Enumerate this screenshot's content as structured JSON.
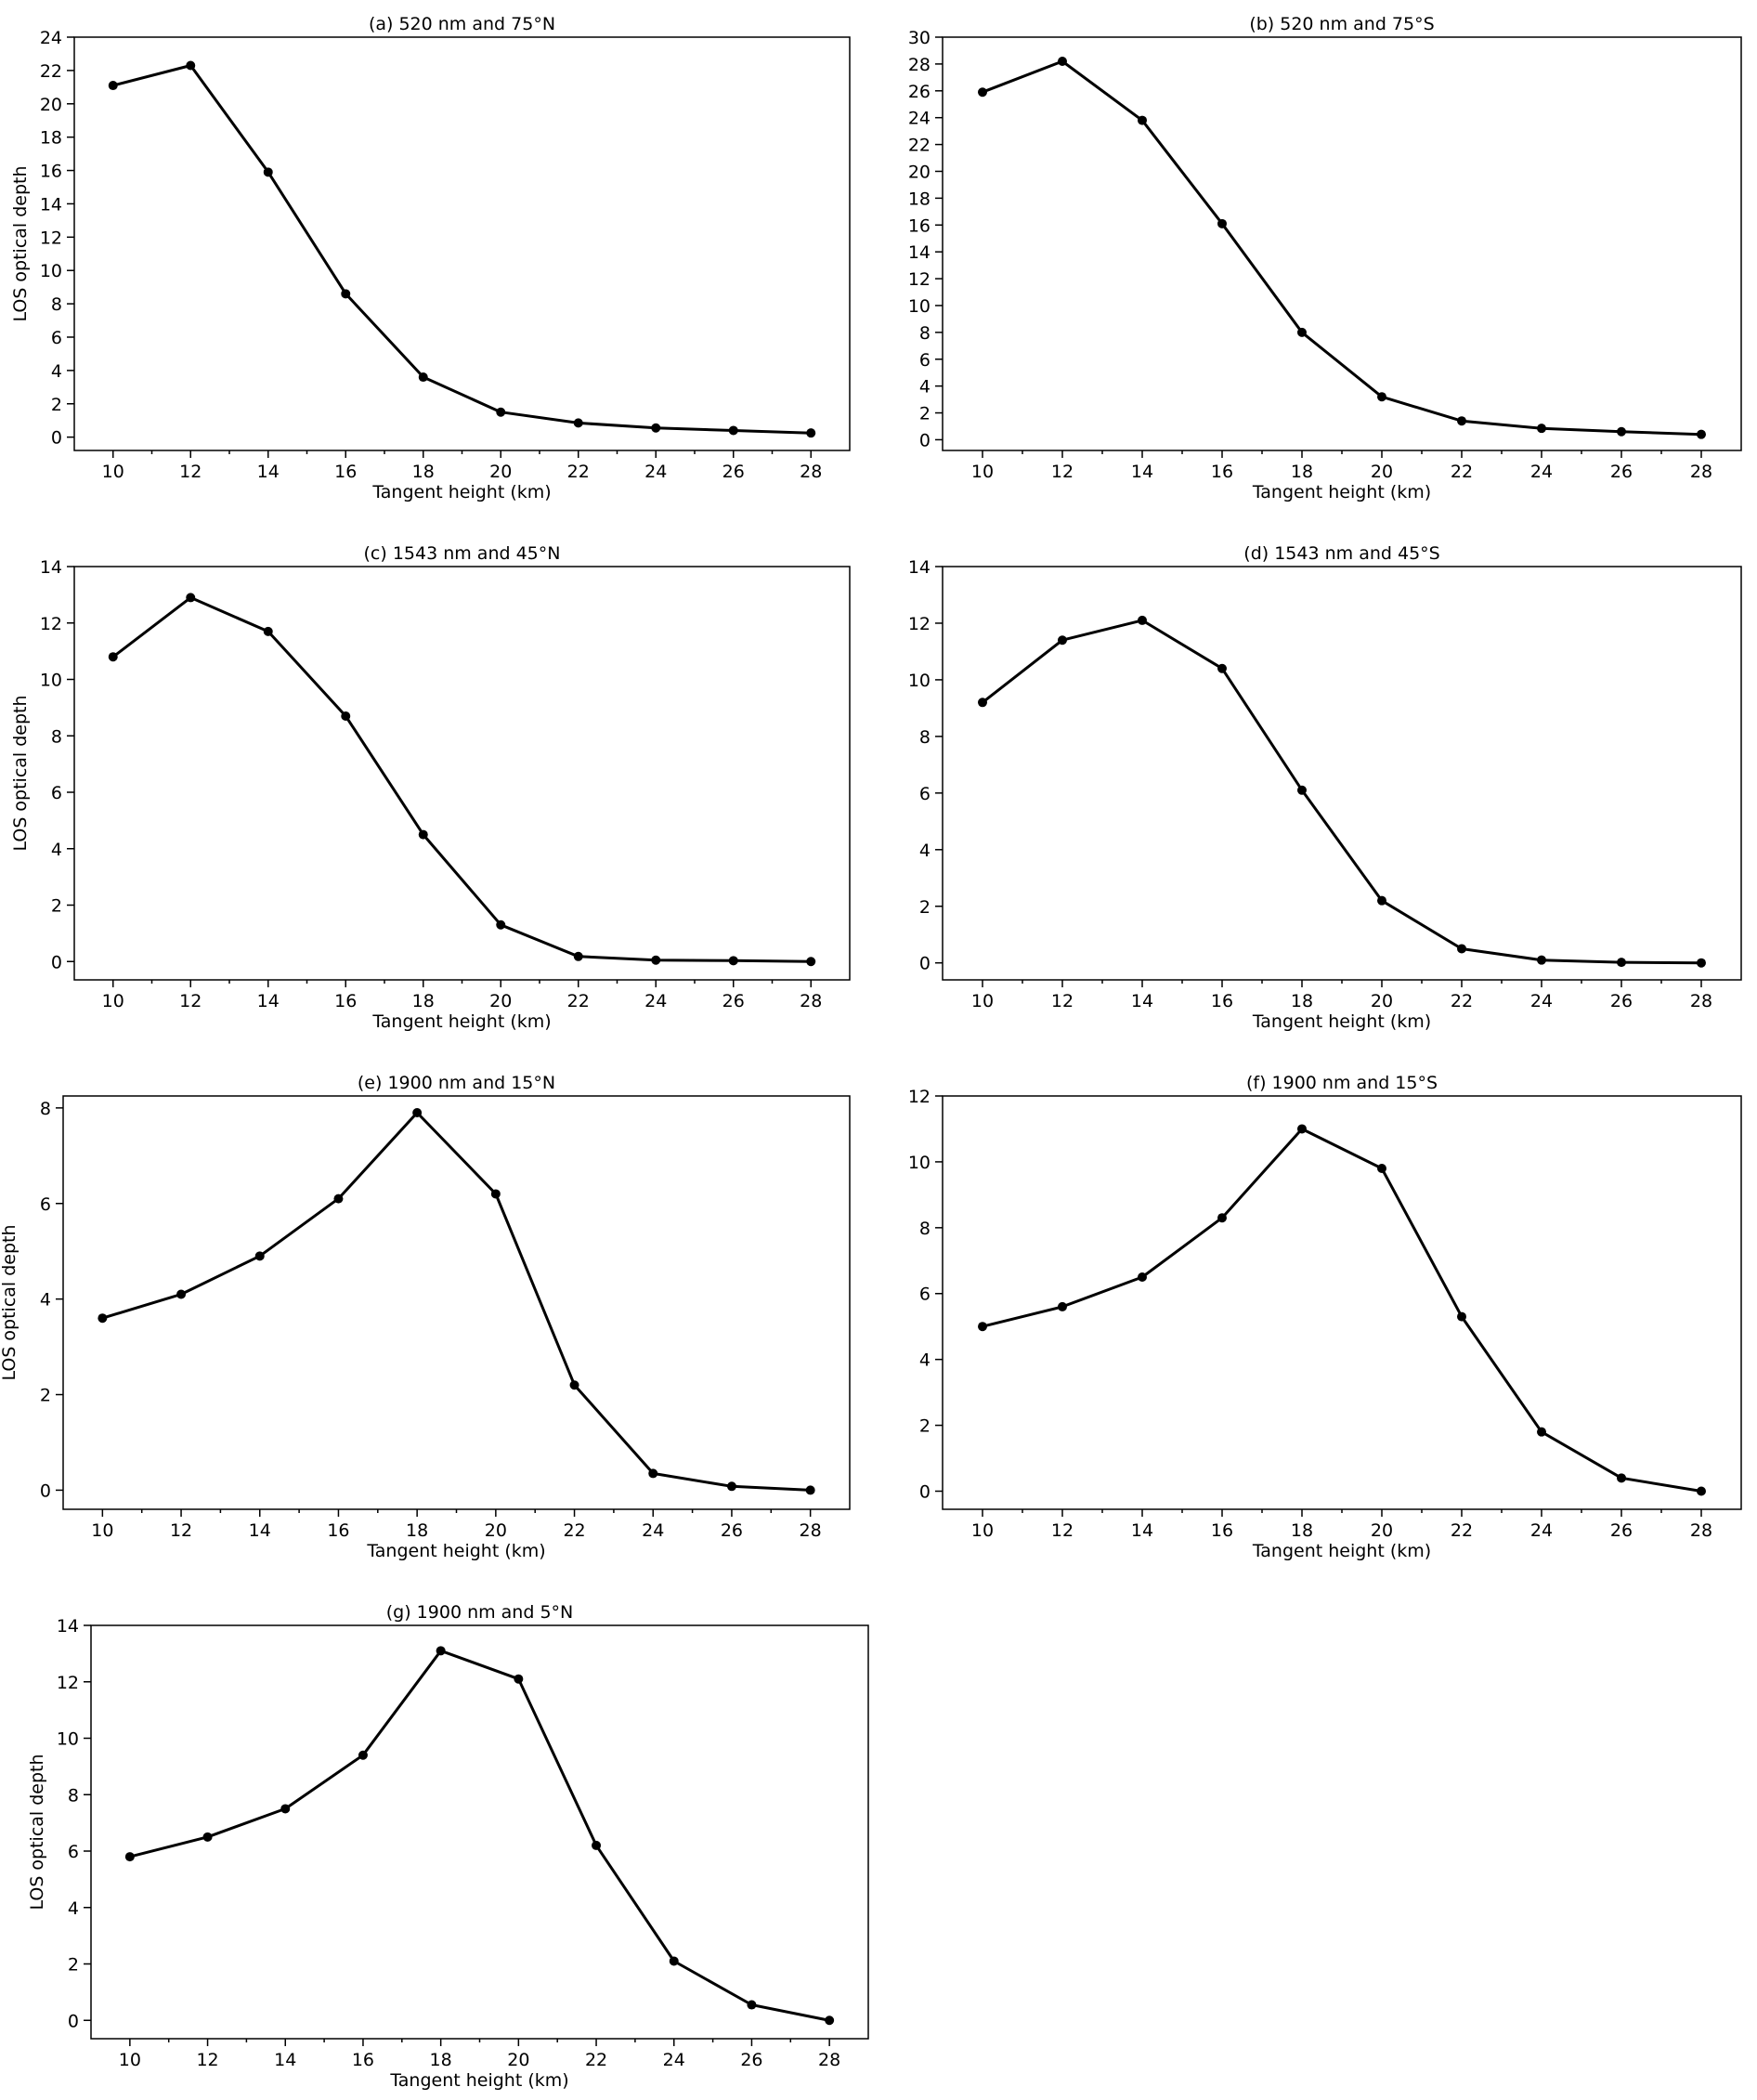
{
  "chart_data": [
    {
      "type": "line",
      "title": "(a) 520 nm and 75°N",
      "xlabel": "Tangent height (km)",
      "ylabel": "LOS optical depth",
      "x": [
        10,
        12,
        14,
        16,
        18,
        20,
        22,
        24,
        26,
        28
      ],
      "series": [
        {
          "values": [
            21.1,
            22.3,
            15.9,
            8.6,
            3.6,
            1.5,
            0.85,
            0.55,
            0.4,
            0.25
          ]
        }
      ],
      "xlim": [
        9,
        29
      ],
      "ylim": [
        -0.8,
        24
      ],
      "xticks": [
        10,
        12,
        14,
        16,
        18,
        20,
        22,
        24,
        26,
        28
      ],
      "yticks": [
        0,
        2,
        4,
        6,
        8,
        10,
        12,
        14,
        16,
        18,
        20,
        22,
        24
      ],
      "grid": false
    },
    {
      "type": "line",
      "title": "(b) 520 nm and 75°S",
      "xlabel": "Tangent height (km)",
      "ylabel": "",
      "x": [
        10,
        12,
        14,
        16,
        18,
        20,
        22,
        24,
        26,
        28
      ],
      "series": [
        {
          "values": [
            25.9,
            28.2,
            23.8,
            16.1,
            8.0,
            3.2,
            1.4,
            0.85,
            0.6,
            0.4
          ]
        }
      ],
      "xlim": [
        9,
        29
      ],
      "ylim": [
        -0.8,
        30
      ],
      "xticks": [
        10,
        12,
        14,
        16,
        18,
        20,
        22,
        24,
        26,
        28
      ],
      "yticks": [
        0,
        2,
        4,
        6,
        8,
        10,
        12,
        14,
        16,
        18,
        20,
        22,
        24,
        26,
        28,
        30
      ],
      "grid": false
    },
    {
      "type": "line",
      "title": "(c) 1543 nm and 45°N",
      "xlabel": "Tangent height (km)",
      "ylabel": "LOS optical depth",
      "x": [
        10,
        12,
        14,
        16,
        18,
        20,
        22,
        24,
        26,
        28
      ],
      "series": [
        {
          "values": [
            10.8,
            12.9,
            11.7,
            8.7,
            4.5,
            1.3,
            0.18,
            0.05,
            0.03,
            0.0
          ]
        }
      ],
      "xlim": [
        9,
        29
      ],
      "ylim": [
        -0.65,
        14
      ],
      "xticks": [
        10,
        12,
        14,
        16,
        18,
        20,
        22,
        24,
        26,
        28
      ],
      "yticks": [
        0,
        2,
        4,
        6,
        8,
        10,
        12,
        14
      ],
      "grid": false
    },
    {
      "type": "line",
      "title": "(d) 1543 nm and 45°S",
      "xlabel": "Tangent height (km)",
      "ylabel": "",
      "x": [
        10,
        12,
        14,
        16,
        18,
        20,
        22,
        24,
        26,
        28
      ],
      "series": [
        {
          "values": [
            9.2,
            11.4,
            12.1,
            10.4,
            6.1,
            2.2,
            0.5,
            0.1,
            0.02,
            0.0
          ]
        }
      ],
      "xlim": [
        9,
        29
      ],
      "ylim": [
        -0.6,
        14
      ],
      "xticks": [
        10,
        12,
        14,
        16,
        18,
        20,
        22,
        24,
        26,
        28
      ],
      "yticks": [
        0,
        2,
        4,
        6,
        8,
        10,
        12,
        14
      ],
      "grid": false
    },
    {
      "type": "line",
      "title": "(e) 1900 nm and 15°N",
      "xlabel": "Tangent height (km)",
      "ylabel": "LOS optical depth",
      "x": [
        10,
        12,
        14,
        16,
        18,
        20,
        22,
        24,
        26,
        28
      ],
      "series": [
        {
          "values": [
            3.6,
            4.1,
            4.9,
            6.1,
            7.9,
            6.2,
            2.2,
            0.35,
            0.08,
            0.0
          ]
        }
      ],
      "xlim": [
        9,
        29
      ],
      "ylim": [
        -0.4,
        8.25
      ],
      "xticks": [
        10,
        12,
        14,
        16,
        18,
        20,
        22,
        24,
        26,
        28
      ],
      "yticks": [
        0,
        2,
        4,
        6,
        8
      ],
      "grid": false
    },
    {
      "type": "line",
      "title": "(f) 1900 nm and 15°S",
      "xlabel": "Tangent height (km)",
      "ylabel": "",
      "x": [
        10,
        12,
        14,
        16,
        18,
        20,
        22,
        24,
        26,
        28
      ],
      "series": [
        {
          "values": [
            5.0,
            5.6,
            6.5,
            8.3,
            11.0,
            9.8,
            5.3,
            1.8,
            0.4,
            0.0
          ]
        }
      ],
      "xlim": [
        9,
        29
      ],
      "ylim": [
        -0.55,
        12
      ],
      "xticks": [
        10,
        12,
        14,
        16,
        18,
        20,
        22,
        24,
        26,
        28
      ],
      "yticks": [
        0,
        2,
        4,
        6,
        8,
        10,
        12
      ],
      "grid": false
    },
    {
      "type": "line",
      "title": "(g) 1900 nm and 5°N",
      "xlabel": "Tangent height (km)",
      "ylabel": "LOS optical depth",
      "x": [
        10,
        12,
        14,
        16,
        18,
        20,
        22,
        24,
        26,
        28
      ],
      "series": [
        {
          "values": [
            5.8,
            6.5,
            7.5,
            9.4,
            13.1,
            12.1,
            6.2,
            2.1,
            0.55,
            0.0
          ]
        }
      ],
      "xlim": [
        9,
        29
      ],
      "ylim": [
        -0.65,
        14
      ],
      "xticks": [
        10,
        12,
        14,
        16,
        18,
        20,
        22,
        24,
        26,
        28
      ],
      "yticks": [
        0,
        2,
        4,
        6,
        8,
        10,
        12,
        14
      ],
      "grid": false
    }
  ],
  "colors": {
    "line": "#000000",
    "marker": "#000000",
    "background": "#ffffff"
  }
}
